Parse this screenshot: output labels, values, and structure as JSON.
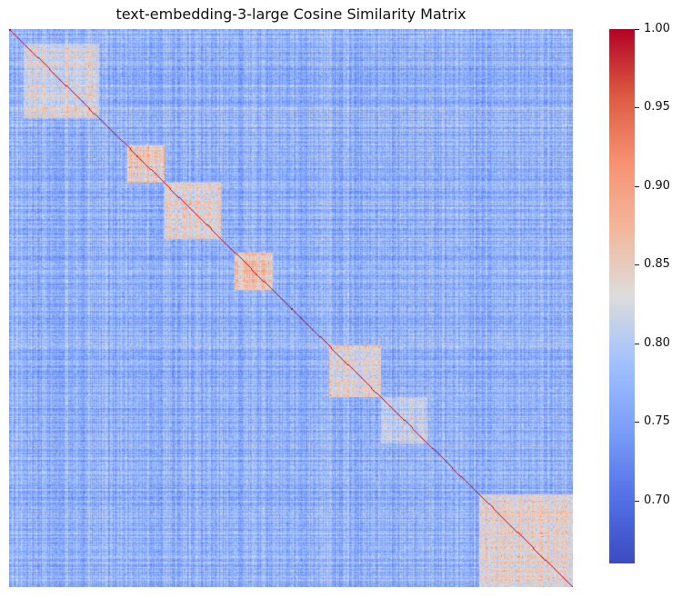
{
  "chart_data": {
    "type": "heatmap",
    "title": "text-embedding-3-large Cosine Similarity Matrix",
    "xlabel": "",
    "ylabel": "",
    "colormap": "coolwarm",
    "n_rows": 600,
    "n_cols": 600,
    "value_range": [
      0.66,
      1.0
    ],
    "diagonal_value": 1.0,
    "typical_offdiagonal_value": 0.77,
    "block_clusters": [
      {
        "start_index": 15,
        "end_index": 95,
        "mean_similarity": 0.83
      },
      {
        "start_index": 125,
        "end_index": 165,
        "mean_similarity": 0.86
      },
      {
        "start_index": 160,
        "end_index": 225,
        "mean_similarity": 0.84
      },
      {
        "start_index": 240,
        "end_index": 280,
        "mean_similarity": 0.86
      },
      {
        "start_index": 340,
        "end_index": 395,
        "mean_similarity": 0.84
      },
      {
        "start_index": 395,
        "end_index": 445,
        "mean_similarity": 0.81
      },
      {
        "start_index": 500,
        "end_index": 600,
        "mean_similarity": 0.84
      }
    ],
    "colorbar": {
      "ticks": [
        0.7,
        0.75,
        0.8,
        0.85,
        0.9,
        0.95,
        1.0
      ],
      "tick_labels": [
        "0.70",
        "0.75",
        "0.80",
        "0.85",
        "0.90",
        "0.95",
        "1.00"
      ],
      "range": [
        0.66,
        1.0
      ]
    },
    "grid": false,
    "legend": "colorbar-right"
  },
  "colors": {
    "low": "#3b4cc0",
    "mid": "#dddddd",
    "high": "#b40426",
    "diagonal": "#e8000b"
  }
}
